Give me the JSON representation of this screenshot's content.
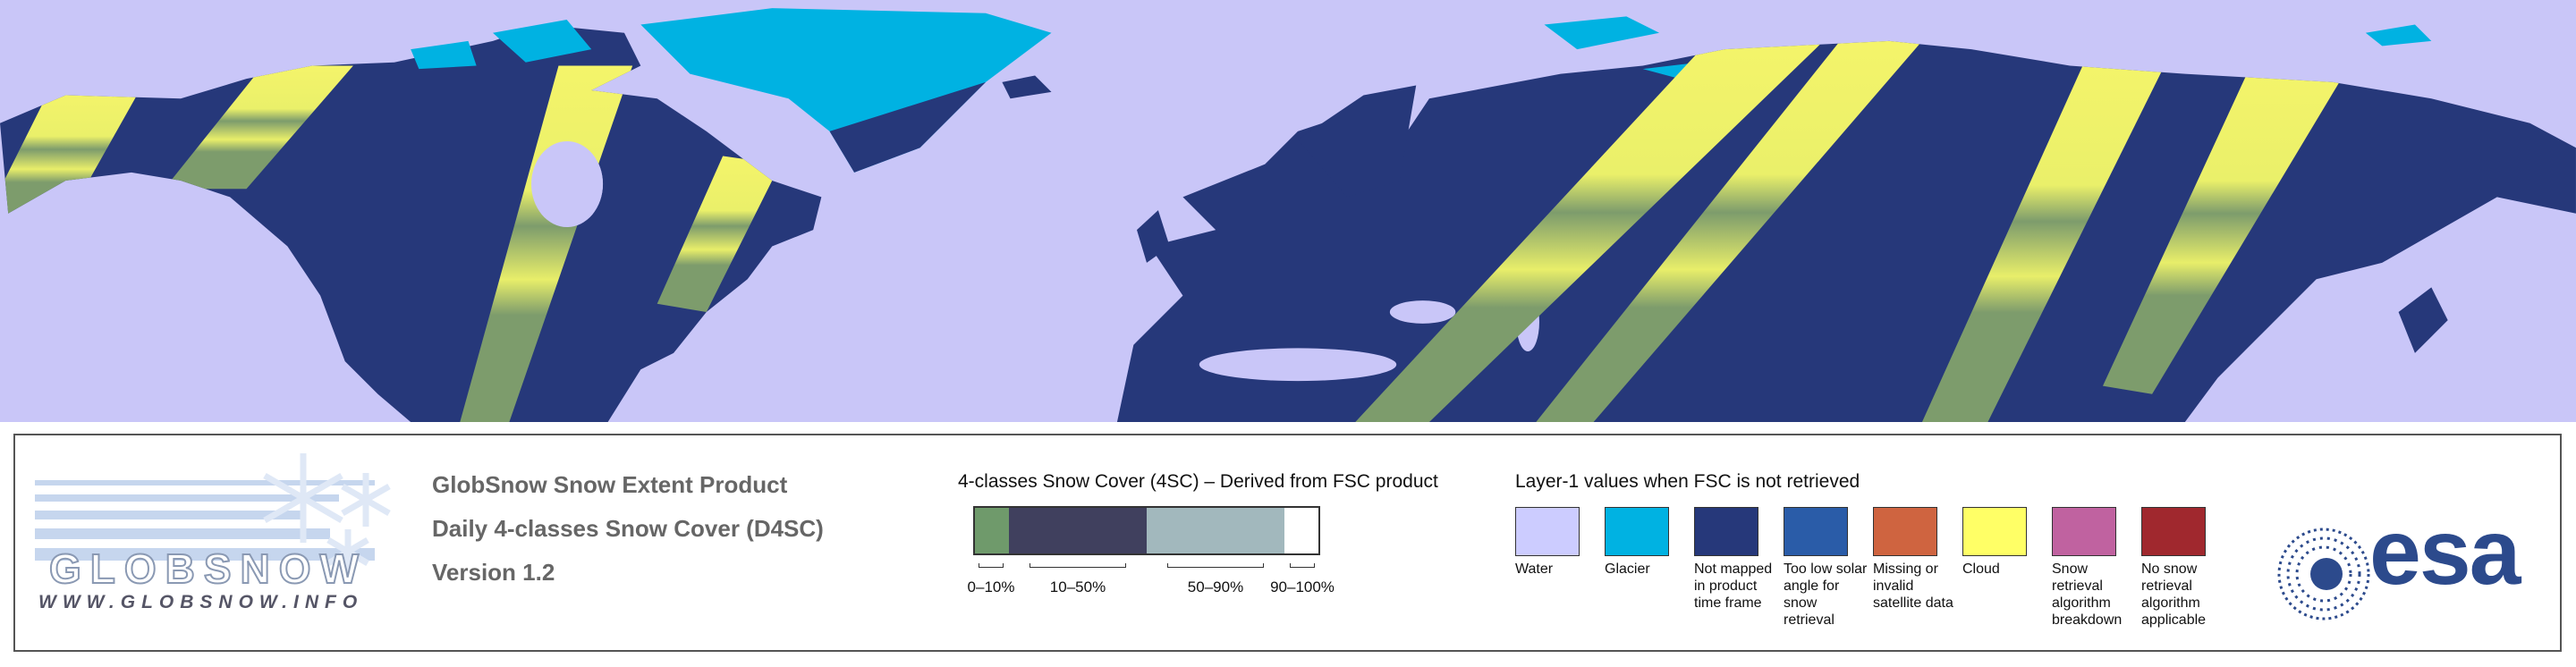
{
  "logo": {
    "name": "GLOBSNOW",
    "url": "WWW.GLOBSNOW.INFO"
  },
  "title_lines": [
    "GlobSnow Snow Extent Product",
    "Daily 4-classes Snow Cover (D4SC)",
    "Version 1.2"
  ],
  "fsc_legend": {
    "title": "4-classes Snow Cover (4SC) – Derived from FSC product",
    "classes": [
      {
        "label": "0–10%",
        "color": "#6f9a6b"
      },
      {
        "label": "10–50%",
        "color": "#40405e"
      },
      {
        "label": "50–90%",
        "color": "#a2b8bd"
      },
      {
        "label": "90–100%",
        "color": "#ffffff"
      }
    ]
  },
  "layer1_legend": {
    "title": "Layer-1 values when FSC is not retrieved",
    "classes": [
      {
        "label": "Water",
        "color": "#ccccff"
      },
      {
        "label": "Glacier",
        "color": "#00b2e2"
      },
      {
        "label": "Not mapped in product time frame",
        "color": "#26387a"
      },
      {
        "label": "Too low solar angle for snow retrieval",
        "color": "#2a5ca8"
      },
      {
        "label": "Missing or invalid satellite data",
        "color": "#cf6440"
      },
      {
        "label": "Cloud",
        "color": "#ffff66"
      },
      {
        "label": "Snow retrieval algorithm breakdown",
        "color": "#c062a0"
      },
      {
        "label": "No snow retrieval algorithm applicable",
        "color": "#a0282e"
      }
    ]
  },
  "esa_logo": "esa"
}
